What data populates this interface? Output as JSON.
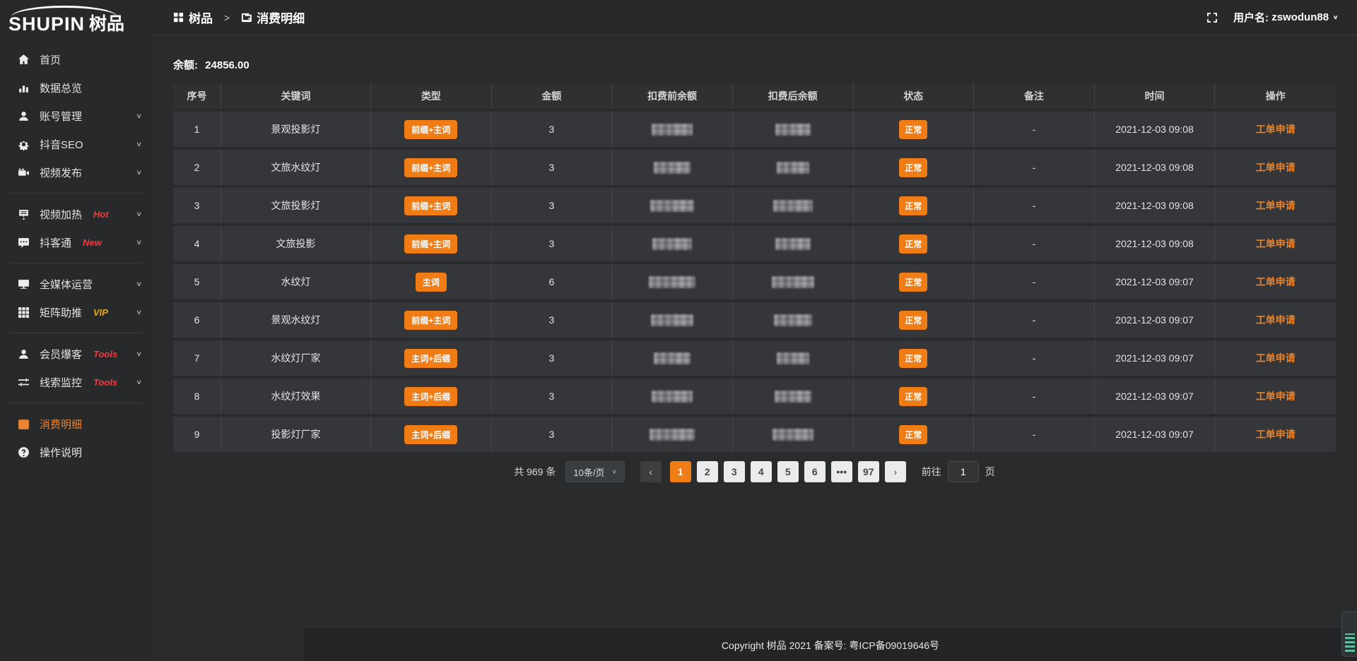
{
  "app": {
    "logo_en": "SHUPIN",
    "logo_cn": "树品"
  },
  "topbar": {
    "breadcrumb": {
      "root": "树品",
      "separator": ">",
      "current": "消费明细"
    },
    "fullscreen_icon": "fullscreen-corners",
    "username_label": "用户名:",
    "username": "zswodun88"
  },
  "sidebar": {
    "items": [
      {
        "icon": "home-icon",
        "label": "首页"
      },
      {
        "icon": "bar-chart-icon",
        "label": "数据总览"
      },
      {
        "icon": "user-icon",
        "label": "账号管理",
        "chevron": true
      },
      {
        "icon": "gear-icon",
        "label": "抖音SEO",
        "chevron": true
      },
      {
        "icon": "video-icon",
        "label": "视频发布",
        "chevron": true
      },
      {
        "divider": true
      },
      {
        "icon": "board-icon",
        "label": "视频加热",
        "badge": "Hot",
        "badge_color": "red",
        "chevron": true
      },
      {
        "icon": "chat-icon",
        "label": "抖客通",
        "badge": "New",
        "badge_color": "red",
        "chevron": true
      },
      {
        "divider": true
      },
      {
        "icon": "monitor-icon",
        "label": "全媒体运营",
        "chevron": true
      },
      {
        "icon": "grid-icon",
        "label": "矩阵助推",
        "badge": "VIP",
        "badge_color": "yellow",
        "chevron": true
      },
      {
        "divider": true
      },
      {
        "icon": "member-icon",
        "label": "会员爆客",
        "badge": "Tools",
        "badge_color": "red",
        "chevron": true
      },
      {
        "icon": "sliders-icon",
        "label": "线索监控",
        "badge": "Tools",
        "badge_color": "red",
        "chevron": true
      },
      {
        "divider": true
      },
      {
        "icon": "wallet-icon",
        "label": "消费明细",
        "active": true
      },
      {
        "icon": "question-icon",
        "label": "操作说明"
      }
    ]
  },
  "main": {
    "balance_label": "余额:",
    "balance_value": "24856.00",
    "table": {
      "headers": [
        "序号",
        "关键词",
        "类型",
        "金额",
        "扣费前余额",
        "扣费后余额",
        "状态",
        "备注",
        "时间",
        "操作"
      ],
      "rows": [
        {
          "index": "1",
          "keyword": "景观投影灯",
          "type": "前缀+主词",
          "amount": "3",
          "status": "正常",
          "remark": "-",
          "time": "2021-12-03 09:08",
          "action": "工单申请"
        },
        {
          "index": "2",
          "keyword": "文旅水纹灯",
          "type": "前缀+主词",
          "amount": "3",
          "status": "正常",
          "remark": "-",
          "time": "2021-12-03 09:08",
          "action": "工单申请"
        },
        {
          "index": "3",
          "keyword": "文旅投影灯",
          "type": "前缀+主词",
          "amount": "3",
          "status": "正常",
          "remark": "-",
          "time": "2021-12-03 09:08",
          "action": "工单申请"
        },
        {
          "index": "4",
          "keyword": "文旅投影",
          "type": "前缀+主词",
          "amount": "3",
          "status": "正常",
          "remark": "-",
          "time": "2021-12-03 09:08",
          "action": "工单申请"
        },
        {
          "index": "5",
          "keyword": "水纹灯",
          "type": "主词",
          "amount": "6",
          "status": "正常",
          "remark": "-",
          "time": "2021-12-03 09:07",
          "action": "工单申请"
        },
        {
          "index": "6",
          "keyword": "景观水纹灯",
          "type": "前缀+主词",
          "amount": "3",
          "status": "正常",
          "remark": "-",
          "time": "2021-12-03 09:07",
          "action": "工单申请"
        },
        {
          "index": "7",
          "keyword": "水纹灯厂家",
          "type": "主词+后缀",
          "amount": "3",
          "status": "正常",
          "remark": "-",
          "time": "2021-12-03 09:07",
          "action": "工单申请"
        },
        {
          "index": "8",
          "keyword": "水纹灯效果",
          "type": "主词+后缀",
          "amount": "3",
          "status": "正常",
          "remark": "-",
          "time": "2021-12-03 09:07",
          "action": "工单申请"
        },
        {
          "index": "9",
          "keyword": "投影灯厂家",
          "type": "主词+后缀",
          "amount": "3",
          "status": "正常",
          "remark": "-",
          "time": "2021-12-03 09:07",
          "action": "工单申请"
        }
      ]
    },
    "pagination": {
      "total_text": "共 969 条",
      "page_size": "10条/页",
      "prev_icon": "‹",
      "next_icon": "›",
      "pages": [
        "1",
        "2",
        "3",
        "4",
        "5",
        "6",
        "•••",
        "97"
      ],
      "active_page": "1",
      "goto_label": "前往",
      "goto_value": "1",
      "goto_suffix": "页"
    }
  },
  "footer": {
    "copyright": "Copyright 树品 2021 备案号: 粤ICP备09019646号"
  },
  "colors": {
    "accent_orange": "#f07c16",
    "link_orange": "#e8832c",
    "badge_red": "#f6383d",
    "badge_yellow": "#e7ab1e"
  }
}
